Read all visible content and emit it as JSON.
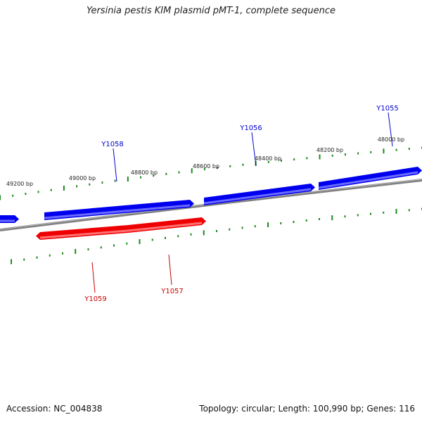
{
  "title": "Yersinia pestis KIM plasmid pMT-1, complete sequence",
  "footer": {
    "accession": "Accession: NC_004838",
    "summary": "Topology: circular; Length: 100,990 bp; Genes: 116"
  },
  "scale_labels": [
    "49200 bp",
    "49000 bp",
    "48800 bp",
    "48600 bp",
    "48400 bp",
    "48200 bp",
    "48000 bp"
  ],
  "genes": [
    {
      "id": "Y1058",
      "strand": "forward",
      "color": "#0000cc"
    },
    {
      "id": "Y1056",
      "strand": "forward",
      "color": "#0000cc"
    },
    {
      "id": "Y1055",
      "strand": "forward",
      "color": "#0000cc"
    },
    {
      "id": "Y1059",
      "strand": "reverse",
      "color": "#cc0000"
    },
    {
      "id": "Y1057",
      "strand": "reverse",
      "color": "#cc0000"
    }
  ],
  "colors": {
    "forward": "#0000ee",
    "reverse": "#ee0000",
    "backbone": "#808080",
    "ticks": "#1a8a1a"
  }
}
